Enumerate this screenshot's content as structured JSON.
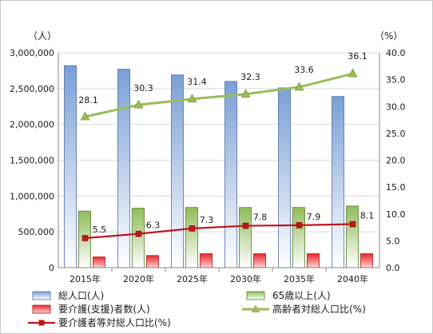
{
  "chart_data": {
    "type": "bar",
    "categories": [
      "2015年",
      "2020年",
      "2025年",
      "2030年",
      "2035年",
      "2040年"
    ],
    "left_unit": "（人）",
    "right_unit": "（%）",
    "y_left": {
      "min": 0,
      "max": 3000000,
      "step": 500000,
      "ticks": [
        "0",
        "500,000",
        "1,000,000",
        "1,500,000",
        "2,000,000",
        "2,500,000",
        "3,000,000"
      ]
    },
    "y_right": {
      "min": 0,
      "max": 40,
      "step": 5,
      "ticks": [
        "0.0",
        "5.0",
        "10.0",
        "15.0",
        "20.0",
        "25.0",
        "30.0",
        "35.0",
        "40.0"
      ]
    },
    "series": [
      {
        "name": "総人口(人)",
        "kind": "bar",
        "axis": "left",
        "values": [
          2820000,
          2770000,
          2690000,
          2600000,
          2510000,
          2390000
        ],
        "color": "#95b3d7"
      },
      {
        "name": "65歳以上(人)",
        "kind": "bar",
        "axis": "left",
        "values": [
          790000,
          830000,
          840000,
          840000,
          840000,
          860000
        ],
        "color": "#9bbb59"
      },
      {
        "name": "要介護(支援)者数(人)",
        "kind": "bar",
        "axis": "left",
        "values": [
          150000,
          170000,
          195000,
          195000,
          195000,
          195000
        ],
        "color": "#e8262b"
      },
      {
        "name": "高齢者対総人口比(%)",
        "kind": "line",
        "axis": "right",
        "values": [
          28.1,
          30.3,
          31.4,
          32.3,
          33.6,
          36.1
        ],
        "color": "#9bbb59"
      },
      {
        "name": "要介護者等対総人口比(%)",
        "kind": "line",
        "axis": "right",
        "values": [
          5.5,
          6.3,
          7.3,
          7.8,
          7.9,
          8.1
        ],
        "color": "#c0161b"
      }
    ],
    "data_labels": {
      "elderly_ratio": [
        "28.1",
        "30.3",
        "31.4",
        "32.3",
        "33.6",
        "36.1"
      ],
      "care_ratio": [
        "5.5",
        "6.3",
        "7.3",
        "7.8",
        "7.9",
        "8.1"
      ]
    },
    "grid": true,
    "legend": "bottom"
  }
}
